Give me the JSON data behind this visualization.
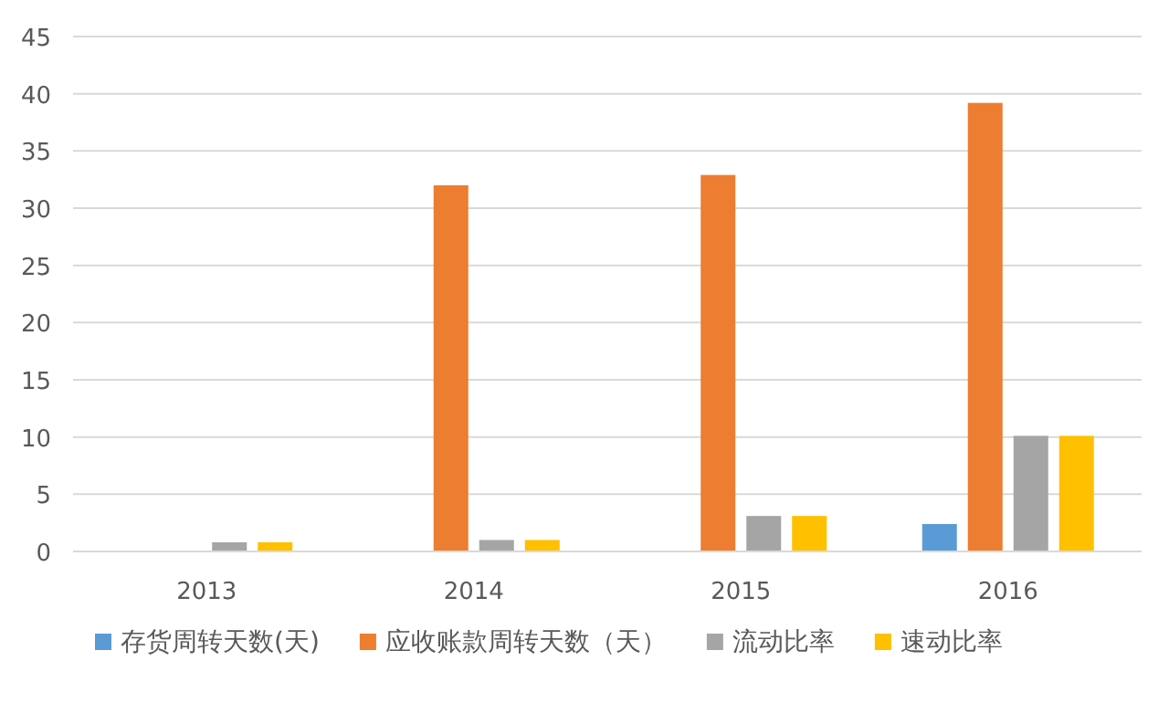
{
  "chart_data": {
    "type": "bar",
    "categories": [
      "2013",
      "2014",
      "2015",
      "2016"
    ],
    "series": [
      {
        "name": "存货周转天数(天)",
        "color": "#5b9bd5",
        "values": [
          0,
          0,
          0,
          2.4
        ]
      },
      {
        "name": "应收账款周转天数（天）",
        "color": "#ed7d31",
        "values": [
          0,
          32,
          32.9,
          39.2
        ]
      },
      {
        "name": "流动比率",
        "color": "#a5a5a5",
        "values": [
          0.8,
          1.0,
          3.1,
          10.1
        ]
      },
      {
        "name": "速动比率",
        "color": "#ffc000",
        "values": [
          0.8,
          1.0,
          3.1,
          10.1
        ]
      }
    ],
    "ylim": [
      0,
      45
    ],
    "yticks": [
      0,
      5,
      10,
      15,
      20,
      25,
      30,
      35,
      40,
      45
    ],
    "grid": "y",
    "legend": "bottom"
  }
}
